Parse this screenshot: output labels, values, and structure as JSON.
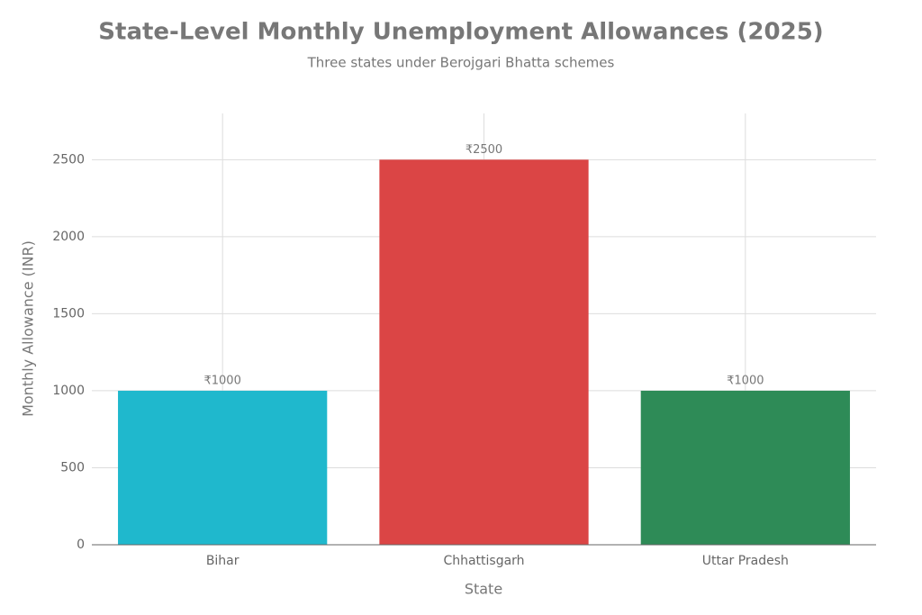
{
  "chart_data": {
    "type": "bar",
    "title": "State-Level Monthly Unemployment Allowances (2025)",
    "subtitle": "Three states under Berojgari Bhatta schemes",
    "x_label": "State",
    "y_label": "Monthly Allowance (INR)",
    "categories": [
      "Bihar",
      "Chhattisgarh",
      "Uttar Pradesh"
    ],
    "values": [
      1000,
      2500,
      1000
    ],
    "value_labels": [
      "₹1000",
      "₹2500",
      "₹1000"
    ],
    "colors": [
      "#1fb8cd",
      "#db4545",
      "#2e8b57"
    ],
    "ylim": [
      0,
      2800
    ],
    "yticks": [
      0,
      500,
      1000,
      1500,
      2000,
      2500
    ],
    "grid": true
  }
}
